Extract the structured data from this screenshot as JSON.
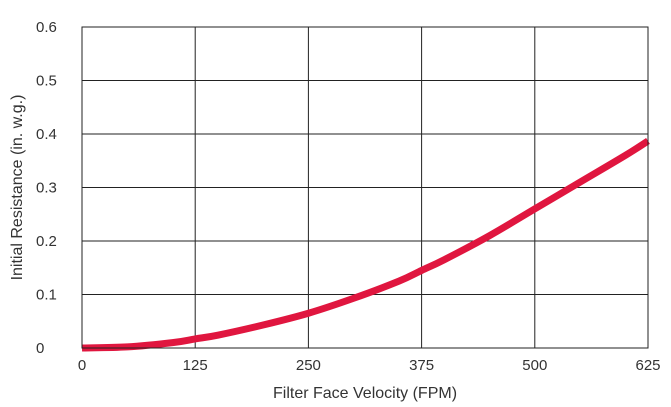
{
  "chart_data": {
    "type": "line",
    "title": "",
    "xlabel": "Filter Face Velocity (FPM)",
    "ylabel": "Initial Resistance (in. w.g.)",
    "xlim": [
      0,
      625
    ],
    "ylim": [
      0,
      0.6
    ],
    "x_ticks": [
      0,
      125,
      250,
      375,
      500,
      625
    ],
    "y_ticks": [
      0,
      0.1,
      0.2,
      0.3,
      0.4,
      0.5,
      0.6
    ],
    "x_tick_labels": [
      "0",
      "125",
      "250",
      "375",
      "500",
      "625"
    ],
    "y_tick_labels": [
      "0",
      "0.1",
      "0.2",
      "0.3",
      "0.4",
      "0.5",
      "0.6"
    ],
    "grid": true,
    "series": [
      {
        "color": "#e0163f",
        "x": [
          0,
          50,
          100,
          125,
          150,
          200,
          250,
          300,
          350,
          375,
          400,
          450,
          500,
          550,
          600,
          625
        ],
        "y": [
          0.0,
          0.002,
          0.01,
          0.017,
          0.024,
          0.043,
          0.065,
          0.093,
          0.125,
          0.145,
          0.165,
          0.21,
          0.26,
          0.31,
          0.36,
          0.387
        ]
      }
    ]
  }
}
